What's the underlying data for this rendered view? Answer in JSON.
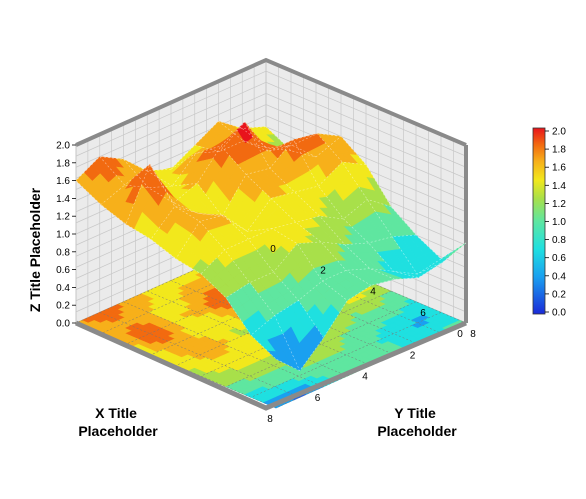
{
  "chart_data": {
    "type": "surface3d",
    "title": "",
    "xlabel_lines": [
      "X Title",
      "Placeholder"
    ],
    "ylabel_lines": [
      "Y Title",
      "Placeholder"
    ],
    "zlabel": "Z Title Placeholder",
    "xlim": [
      0,
      8
    ],
    "ylim": [
      0,
      8
    ],
    "zlim": [
      0,
      2
    ],
    "x_ticks": [
      "0",
      "2",
      "4",
      "6",
      "8"
    ],
    "y_ticks": [
      "0",
      "2",
      "4",
      "6",
      "8"
    ],
    "z_ticks": [
      "0.0",
      "0.2",
      "0.4",
      "0.6",
      "0.8",
      "1.0",
      "1.2",
      "1.4",
      "1.6",
      "1.8",
      "2.0"
    ],
    "colorbar_ticks": [
      "2.0",
      "1.8",
      "1.6",
      "1.4",
      "1.2",
      "1.0",
      "0.8",
      "0.6",
      "0.4",
      "0.2",
      "0.0"
    ],
    "colorbar_colors": [
      "#e8141c",
      "#f26a10",
      "#f7b01a",
      "#f2e81c",
      "#a8e04a",
      "#5fe6a0",
      "#1fe0e0",
      "#1aa0f0",
      "#1a60f0",
      "#1a2ad8"
    ],
    "grid": true,
    "legend": "right",
    "x": [
      0,
      1,
      2,
      3,
      4,
      5,
      6,
      7,
      8
    ],
    "y": [
      0,
      1,
      2,
      3,
      4,
      5,
      6,
      7,
      8
    ],
    "z": [
      [
        1.25,
        1.1,
        1.15,
        1.5,
        1.3,
        0.95,
        0.75,
        0.6,
        0.9
      ],
      [
        1.35,
        1.25,
        1.4,
        1.65,
        1.45,
        1.15,
        0.85,
        0.55,
        0.8
      ],
      [
        1.55,
        1.45,
        1.45,
        1.7,
        1.3,
        1.05,
        0.9,
        0.7,
        0.75
      ],
      [
        1.4,
        1.45,
        1.9,
        1.5,
        1.35,
        1.2,
        1.0,
        0.85,
        0.85
      ],
      [
        1.25,
        1.55,
        1.75,
        1.55,
        1.4,
        1.25,
        1.15,
        0.95,
        0.9
      ],
      [
        1.35,
        1.3,
        1.45,
        1.2,
        1.15,
        1.3,
        1.25,
        0.95,
        0.85
      ],
      [
        1.6,
        1.4,
        1.35,
        1.35,
        1.45,
        1.3,
        1.05,
        0.85,
        0.55
      ],
      [
        1.75,
        1.55,
        1.9,
        1.55,
        1.5,
        1.3,
        1.05,
        0.8,
        0.3
      ],
      [
        1.6,
        1.45,
        1.35,
        1.3,
        1.2,
        1.15,
        1.0,
        0.7,
        0.55
      ]
    ]
  }
}
